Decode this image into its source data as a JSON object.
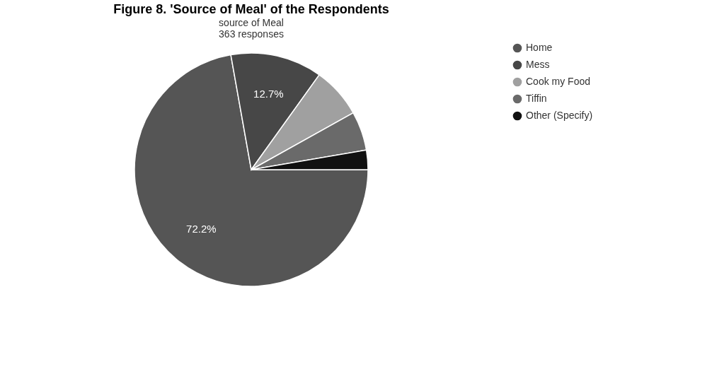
{
  "chart_data": {
    "type": "pie",
    "title": "Figure 8. 'Source of Meal' of the Respondents",
    "subtitle": "source of Meal",
    "annotations": [
      "363 responses"
    ],
    "categories": [
      "Home",
      "Mess",
      "Cook my Food",
      "Tiffin",
      "Other (Specify)"
    ],
    "values": [
      72.2,
      12.7,
      7.0,
      5.4,
      2.7
    ],
    "colors": [
      "#555555",
      "#474747",
      "#a0a0a0",
      "#6a6a6a",
      "#111111"
    ],
    "value_labels": [
      "72.2%",
      "12.7%",
      null,
      null,
      null
    ],
    "legend": "right"
  }
}
